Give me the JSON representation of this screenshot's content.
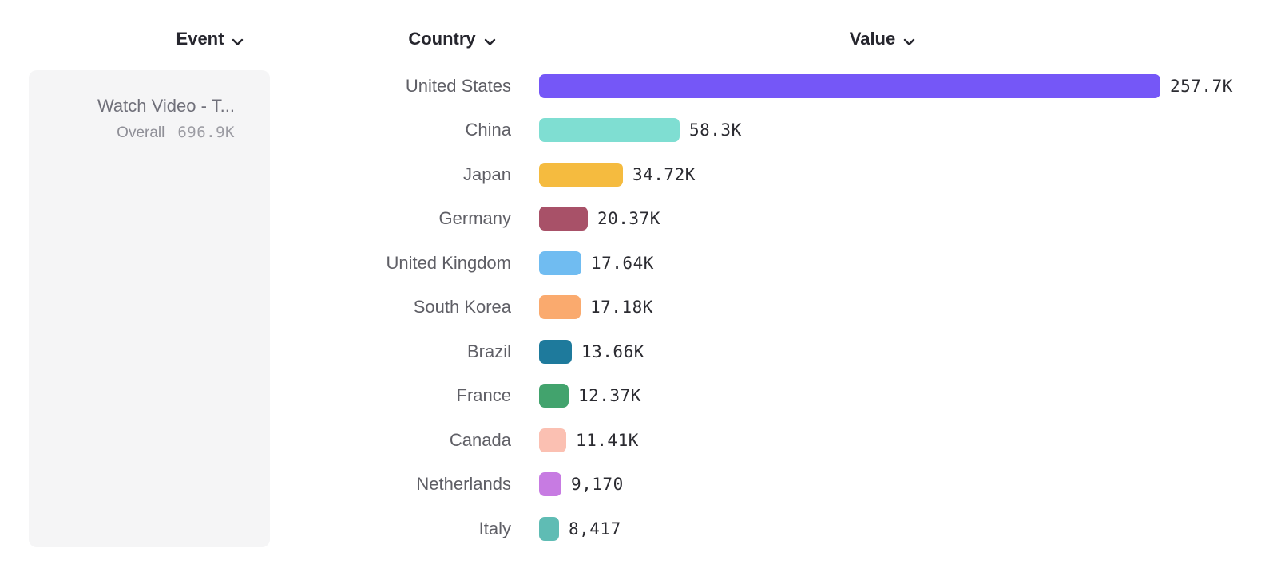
{
  "header": {
    "columns": [
      {
        "id": "event",
        "label": "Event"
      },
      {
        "id": "country",
        "label": "Country"
      },
      {
        "id": "value",
        "label": "Value"
      }
    ],
    "chevron_icon": "chevron-down",
    "text_color": "#26262e"
  },
  "event_panel": {
    "event_name": "Watch Video - T...",
    "metric_label": "Overall",
    "metric_value": "696.9K",
    "background_color": "#f5f5f6"
  },
  "chart_data": {
    "type": "bar",
    "orientation": "horizontal",
    "categories": [
      "United States",
      "China",
      "Japan",
      "Germany",
      "United Kingdom",
      "South Korea",
      "Brazil",
      "France",
      "Canada",
      "Netherlands",
      "Italy"
    ],
    "values": [
      257700,
      58300,
      34720,
      20370,
      17640,
      17180,
      13660,
      12370,
      11410,
      9170,
      8417
    ],
    "value_labels": [
      "257.7K",
      "58.3K",
      "34.72K",
      "20.37K",
      "17.64K",
      "17.18K",
      "13.66K",
      "12.37K",
      "11.41K",
      "9,170",
      "8,417"
    ],
    "bar_colors": [
      "#7557F7",
      "#7FDED2",
      "#F5BB3F",
      "#A85168",
      "#70BCF1",
      "#FAAA6E",
      "#1E7A9C",
      "#42A36D",
      "#FBC0B2",
      "#C77BE2",
      "#5FBCB4"
    ],
    "xlim": [
      0,
      257700
    ],
    "xlabel": "",
    "ylabel": "",
    "grid": false,
    "legend": false,
    "value_labels_position": "end-of-bar"
  }
}
